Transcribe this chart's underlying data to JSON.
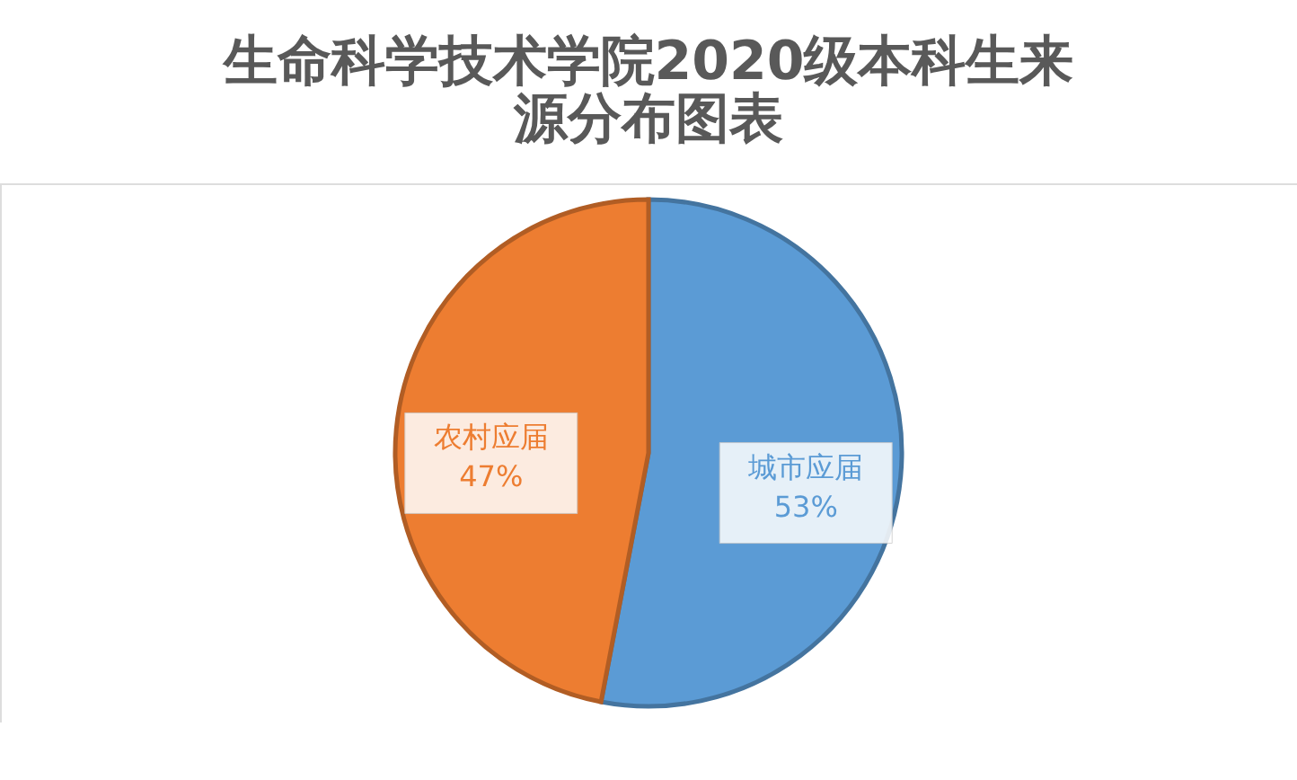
{
  "chart_data": {
    "type": "pie",
    "title": [
      "生命科学技术学院2020级本科生来",
      "源分布图表"
    ],
    "categories": [
      "城市应届",
      "农村应届"
    ],
    "values": [
      53,
      47
    ],
    "value_labels": [
      "53%",
      "47%"
    ],
    "colors": [
      "#5b9bd5",
      "#ed7d31"
    ],
    "legend": false
  }
}
